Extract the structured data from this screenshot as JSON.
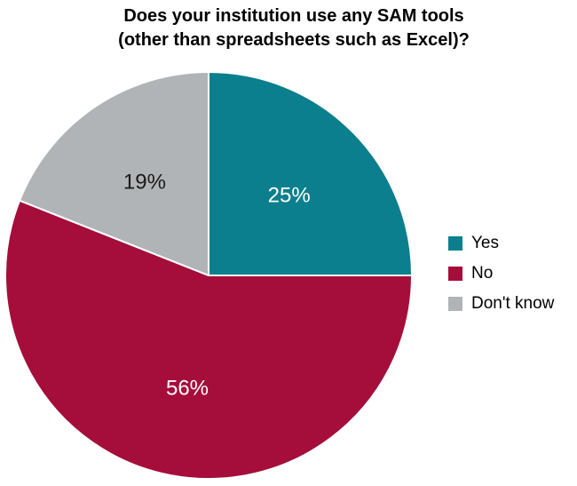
{
  "chart_data": {
    "type": "pie",
    "title": "Does your institution use any SAM tools (other than spreadsheets such as Excel)?",
    "title_lines": [
      "Does your institution use any SAM tools",
      "(other than spreadsheets such as Excel)?"
    ],
    "segments": [
      {
        "label": "Yes",
        "value": 25,
        "label_text": "25%",
        "color": "#0B7F8D",
        "label_color": "#FFFFFF"
      },
      {
        "label": "No",
        "value": 56,
        "label_text": "56%",
        "color": "#A50D3B",
        "label_color": "#FFFFFF"
      },
      {
        "label": "Don't know",
        "value": 19,
        "label_text": "19%",
        "color": "#B1B4B6",
        "label_color": "#1A1A1A"
      }
    ],
    "start_angle_deg": 0,
    "direction": "clockwise",
    "legend_position": "right",
    "slice_border_color": "#FFFFFF",
    "background_color": "#FFFFFF"
  }
}
